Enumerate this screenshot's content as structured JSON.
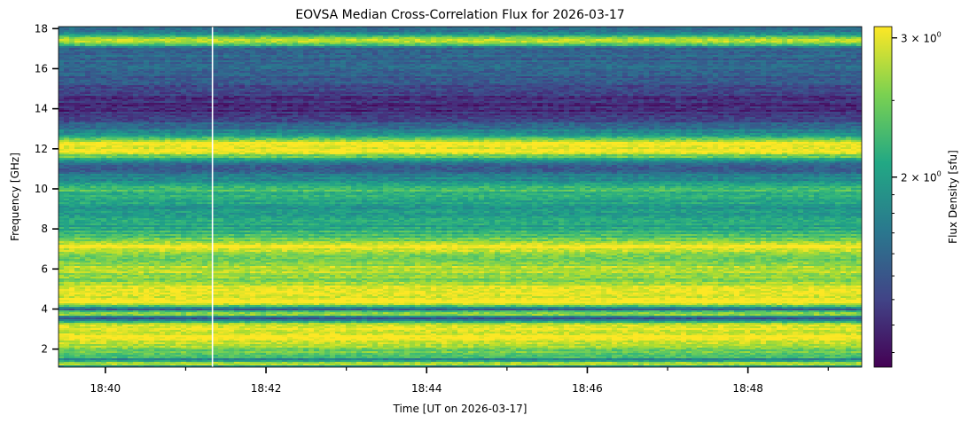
{
  "chart_data": {
    "type": "heatmap",
    "title": "EOVSA Median Cross-Correlation Flux for 2026-03-17",
    "xlabel": "Time [UT on 2026-03-17]",
    "ylabel": "Frequency [GHz]",
    "colorbar_label": "Flux Density [sfu]",
    "colormap": "viridis",
    "colorbar_scale": "log",
    "colorbar_ticks": [
      {
        "value": 2,
        "base": "2 × 10",
        "exp": "0"
      },
      {
        "value": 3,
        "base": "3 × 10",
        "exp": "0"
      }
    ],
    "color_range": [
      1.15,
      3.1
    ],
    "x_range": [
      "18:39:25",
      "18:49:25"
    ],
    "x_major_ticks": [
      "18:40",
      "18:42",
      "18:44",
      "18:46",
      "18:48"
    ],
    "x_minor_ticks": [
      "18:41",
      "18:43",
      "18:45",
      "18:47",
      "18:49"
    ],
    "y_range": [
      1.1,
      18.1
    ],
    "y_ticks": [
      2,
      4,
      6,
      8,
      10,
      12,
      14,
      16,
      18
    ],
    "gap_line_time": "18:41:20",
    "frequency_profile": [
      {
        "f": 1.1,
        "flux": 1.5
      },
      {
        "f": 1.25,
        "flux": 3.1
      },
      {
        "f": 1.45,
        "flux": 1.7
      },
      {
        "f": 1.65,
        "flux": 2.4
      },
      {
        "f": 2.0,
        "flux": 2.6
      },
      {
        "f": 2.5,
        "flux": 3.1
      },
      {
        "f": 2.8,
        "flux": 3.0
      },
      {
        "f": 3.2,
        "flux": 3.1
      },
      {
        "f": 3.55,
        "flux": 1.3
      },
      {
        "f": 3.75,
        "flux": 3.0
      },
      {
        "f": 4.0,
        "flux": 1.4
      },
      {
        "f": 4.3,
        "flux": 3.1
      },
      {
        "f": 5.0,
        "flux": 3.0
      },
      {
        "f": 5.5,
        "flux": 2.6
      },
      {
        "f": 6.0,
        "flux": 2.8
      },
      {
        "f": 6.5,
        "flux": 2.5
      },
      {
        "f": 7.1,
        "flux": 3.1
      },
      {
        "f": 7.5,
        "flux": 2.4
      },
      {
        "f": 8.0,
        "flux": 2.1
      },
      {
        "f": 9.0,
        "flux": 1.9
      },
      {
        "f": 9.9,
        "flux": 2.3
      },
      {
        "f": 10.5,
        "flux": 1.8
      },
      {
        "f": 11.2,
        "flux": 1.5
      },
      {
        "f": 11.9,
        "flux": 3.1
      },
      {
        "f": 12.3,
        "flux": 3.1
      },
      {
        "f": 12.7,
        "flux": 1.9
      },
      {
        "f": 13.5,
        "flux": 1.35
      },
      {
        "f": 14.3,
        "flux": 1.3
      },
      {
        "f": 15.0,
        "flux": 1.45
      },
      {
        "f": 16.0,
        "flux": 1.6
      },
      {
        "f": 17.0,
        "flux": 1.55
      },
      {
        "f": 17.4,
        "flux": 3.0
      },
      {
        "f": 17.8,
        "flux": 1.7
      },
      {
        "f": 18.1,
        "flux": 1.6
      }
    ]
  }
}
